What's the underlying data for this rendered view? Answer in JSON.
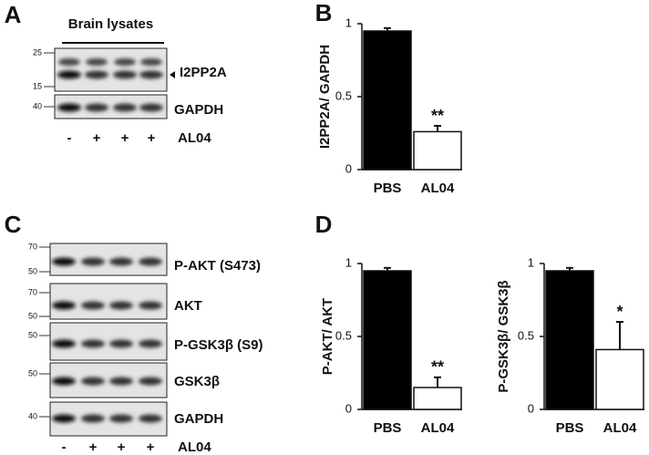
{
  "panel_labels": [
    "A",
    "B",
    "C",
    "D"
  ],
  "blots": [
    {
      "title": "Brain lysates",
      "rows": [
        {
          "label": "I2PP2A",
          "markers": [
            25,
            15
          ]
        },
        {
          "label": "GAPDH",
          "markers": [
            40
          ]
        }
      ],
      "signs": [
        "-",
        "+",
        "+",
        "+"
      ],
      "treatment": "AL04"
    },
    {
      "rows": [
        {
          "label": "P-AKT (S473)",
          "markers": [
            70,
            50
          ]
        },
        {
          "label": "AKT",
          "markers": [
            70,
            50
          ]
        },
        {
          "label": "P-GSK3β (S9)",
          "markers": [
            50
          ]
        },
        {
          "label": "GSK3β",
          "markers": [
            50
          ]
        },
        {
          "label": "GAPDH",
          "markers": [
            40
          ]
        }
      ],
      "signs": [
        "-",
        "+",
        "+",
        "+"
      ],
      "treatment": "AL04"
    }
  ],
  "chart_data": [
    {
      "type": "bar",
      "ylabel": "I2PP2A/ GAPDH",
      "categories": [
        "PBS",
        "AL04"
      ],
      "values": [
        0.95,
        0.26
      ],
      "errors": [
        0.02,
        0.04
      ],
      "colors": [
        "#000000",
        "#ffffff"
      ],
      "annotation": "**",
      "ylim": [
        0,
        1
      ],
      "yticks": [
        0,
        0.5,
        1
      ]
    },
    {
      "type": "bar",
      "ylabel": "P-AKT/ AKT",
      "categories": [
        "PBS",
        "AL04"
      ],
      "values": [
        0.95,
        0.15
      ],
      "errors": [
        0.02,
        0.07
      ],
      "colors": [
        "#000000",
        "#ffffff"
      ],
      "annotation": "**",
      "ylim": [
        0,
        1
      ],
      "yticks": [
        0,
        0.5,
        1
      ]
    },
    {
      "type": "bar",
      "ylabel": "P-GSK3β/ GSK3β",
      "categories": [
        "PBS",
        "AL04"
      ],
      "values": [
        0.95,
        0.41
      ],
      "errors": [
        0.02,
        0.19
      ],
      "colors": [
        "#000000",
        "#ffffff"
      ],
      "annotation": "*",
      "ylim": [
        0,
        1
      ],
      "yticks": [
        0,
        0.5,
        1
      ]
    }
  ]
}
